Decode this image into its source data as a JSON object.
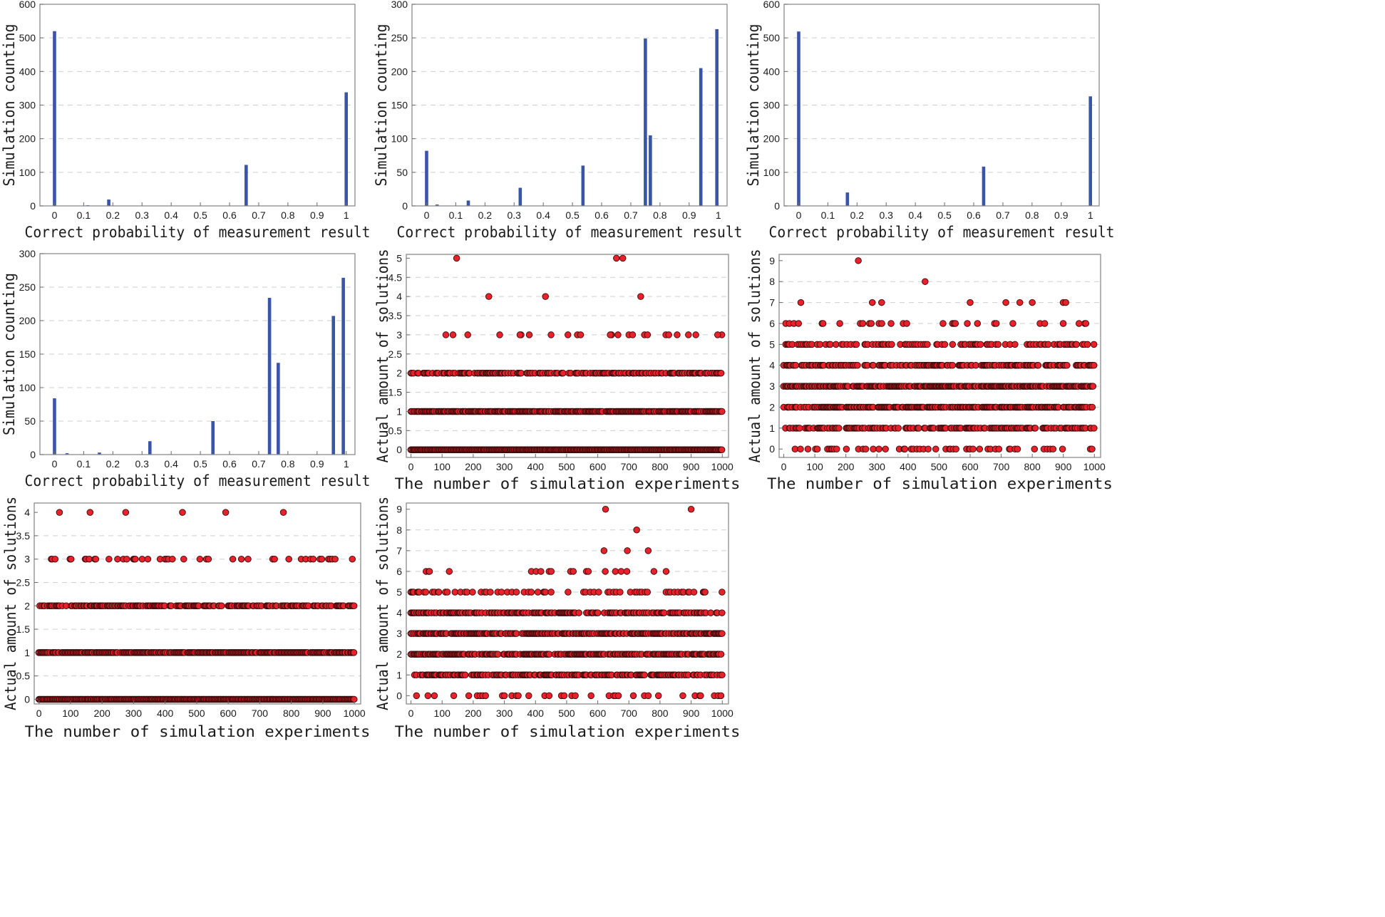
{
  "chart_data": [
    {
      "id": "hist1",
      "type": "bar",
      "xlabel": "Correct probability of measurement result",
      "ylabel": "Simulation counting",
      "xlim": [
        -0.05,
        1.03
      ],
      "ylim": [
        0,
        600
      ],
      "xticks": [
        0,
        0.1,
        0.2,
        0.3,
        0.4,
        0.5,
        0.6,
        0.7,
        0.8,
        0.9,
        1
      ],
      "xtick_labels": [
        "0",
        "0.1",
        "0.2",
        "0.3",
        "0.4",
        "0.5",
        "0.6",
        "0.7",
        "0.8",
        "0.9",
        "1"
      ],
      "yticks": [
        0,
        100,
        200,
        300,
        400,
        500,
        600
      ],
      "ytick_labels": [
        "0",
        "100",
        "200",
        "300",
        "400",
        "500",
        "600"
      ],
      "bar_x": [
        0,
        0.114,
        0.186,
        0.657,
        1.0
      ],
      "bar_values": [
        520,
        2,
        19,
        122,
        338
      ]
    },
    {
      "id": "hist2",
      "type": "bar",
      "xlabel": "Correct probability of measurement result",
      "ylabel": "Simulation counting",
      "xlim": [
        -0.05,
        1.03
      ],
      "ylim": [
        0,
        300
      ],
      "xticks": [
        0,
        0.1,
        0.2,
        0.3,
        0.4,
        0.5,
        0.6,
        0.7,
        0.8,
        0.9,
        1
      ],
      "xtick_labels": [
        "0",
        "0.1",
        "0.2",
        "0.3",
        "0.4",
        "0.5",
        "0.6",
        "0.7",
        "0.8",
        "0.9",
        "1"
      ],
      "yticks": [
        0,
        50,
        100,
        150,
        200,
        250,
        300
      ],
      "ytick_labels": [
        "0",
        "50",
        "100",
        "150",
        "200",
        "250",
        "300"
      ],
      "bar_x": [
        0.0,
        0.036,
        0.143,
        0.321,
        0.536,
        0.75,
        0.767,
        0.94,
        0.995
      ],
      "bar_values": [
        82,
        2,
        8,
        27,
        60,
        249,
        105,
        205,
        263
      ]
    },
    {
      "id": "hist3",
      "type": "bar",
      "xlabel": "Correct probability of measurement result",
      "ylabel": "Simulation counting",
      "xlim": [
        -0.05,
        1.03
      ],
      "ylim": [
        0,
        600
      ],
      "xticks": [
        0,
        0.1,
        0.2,
        0.3,
        0.4,
        0.5,
        0.6,
        0.7,
        0.8,
        0.9,
        1
      ],
      "xtick_labels": [
        "0",
        "0.1",
        "0.2",
        "0.3",
        "0.4",
        "0.5",
        "0.6",
        "0.7",
        "0.8",
        "0.9",
        "1"
      ],
      "yticks": [
        0,
        100,
        200,
        300,
        400,
        500,
        600
      ],
      "ytick_labels": [
        "0",
        "100",
        "200",
        "300",
        "400",
        "500",
        "600"
      ],
      "bar_x": [
        0,
        0.167,
        0.634,
        1.0
      ],
      "bar_values": [
        519,
        40,
        117,
        326
      ]
    },
    {
      "id": "hist4",
      "type": "bar",
      "xlabel": "Correct probability of measurement result",
      "ylabel": "Simulation counting",
      "xlim": [
        -0.05,
        1.03
      ],
      "ylim": [
        0,
        300
      ],
      "xticks": [
        0,
        0.1,
        0.2,
        0.3,
        0.4,
        0.5,
        0.6,
        0.7,
        0.8,
        0.9,
        1
      ],
      "xtick_labels": [
        "0",
        "0.1",
        "0.2",
        "0.3",
        "0.4",
        "0.5",
        "0.6",
        "0.7",
        "0.8",
        "0.9",
        "1"
      ],
      "yticks": [
        0,
        50,
        100,
        150,
        200,
        250,
        300
      ],
      "ytick_labels": [
        "0",
        "50",
        "100",
        "150",
        "200",
        "250",
        "300"
      ],
      "bar_x": [
        0.0,
        0.043,
        0.154,
        0.327,
        0.543,
        0.737,
        0.767,
        0.956,
        0.99
      ],
      "bar_values": [
        84,
        2,
        3,
        20,
        50,
        234,
        137,
        207,
        264
      ]
    },
    {
      "id": "scatter1",
      "type": "scatter",
      "xlabel": "The number of simulation experiments",
      "ylabel": "Actual amount of solutions",
      "xlim": [
        -15,
        1020
      ],
      "ylim": [
        -0.2,
        5.1
      ],
      "xticks": [
        0,
        100,
        200,
        300,
        400,
        500,
        600,
        700,
        800,
        900,
        1000
      ],
      "xtick_labels": [
        "0",
        "100",
        "200",
        "300",
        "400",
        "500",
        "600",
        "700",
        "800",
        "900",
        "1000"
      ],
      "yticks": [
        0,
        0.5,
        1,
        1.5,
        2,
        2.5,
        3,
        3.5,
        4,
        4.5,
        5
      ],
      "ytick_labels": [
        "0",
        "0.5",
        "1",
        "1.5",
        "2",
        "2.5",
        "3",
        "3.5",
        "4",
        "4.5",
        "5"
      ],
      "levels": [
        0,
        1,
        2,
        3,
        4,
        5
      ],
      "density": [
        1.0,
        0.85,
        0.55,
        0.025,
        0.004,
        0.001
      ],
      "seed": 11,
      "fixed_points": [
        {
          "x": 250,
          "y": 4
        },
        {
          "x": 432,
          "y": 4
        },
        {
          "x": 738,
          "y": 4
        },
        {
          "x": 660,
          "y": 5
        },
        {
          "x": 112,
          "y": 3
        },
        {
          "x": 135,
          "y": 3
        },
        {
          "x": 285,
          "y": 3
        },
        {
          "x": 350,
          "y": 3
        },
        {
          "x": 380,
          "y": 3
        },
        {
          "x": 450,
          "y": 3
        },
        {
          "x": 545,
          "y": 3
        },
        {
          "x": 640,
          "y": 3
        },
        {
          "x": 665,
          "y": 3
        },
        {
          "x": 700,
          "y": 3
        },
        {
          "x": 712,
          "y": 3
        },
        {
          "x": 750,
          "y": 3
        },
        {
          "x": 760,
          "y": 3
        },
        {
          "x": 855,
          "y": 3
        },
        {
          "x": 915,
          "y": 3
        },
        {
          "x": 985,
          "y": 3
        }
      ]
    },
    {
      "id": "scatter2",
      "type": "scatter",
      "xlabel": "The number of simulation experiments",
      "ylabel": "Actual amount of solutions",
      "xlim": [
        -15,
        1020
      ],
      "ylim": [
        -0.4,
        9.3
      ],
      "xticks": [
        0,
        100,
        200,
        300,
        400,
        500,
        600,
        700,
        800,
        900,
        1000
      ],
      "xtick_labels": [
        "0",
        "100",
        "200",
        "300",
        "400",
        "500",
        "600",
        "700",
        "800",
        "900",
        "1000"
      ],
      "yticks": [
        0,
        1,
        2,
        3,
        4,
        5,
        6,
        7,
        8,
        9
      ],
      "ytick_labels": [
        "0",
        "1",
        "2",
        "3",
        "4",
        "5",
        "6",
        "7",
        "8",
        "9"
      ],
      "levels": [
        0,
        1,
        2,
        3,
        4,
        5,
        6,
        7
      ],
      "density": [
        0.12,
        0.5,
        0.7,
        0.72,
        0.5,
        0.28,
        0.07,
        0.01
      ],
      "seed": 23,
      "fixed_points": [
        {
          "x": 240,
          "y": 9
        },
        {
          "x": 455,
          "y": 8
        },
        {
          "x": 55,
          "y": 7
        },
        {
          "x": 285,
          "y": 7
        },
        {
          "x": 315,
          "y": 7
        },
        {
          "x": 600,
          "y": 7
        },
        {
          "x": 715,
          "y": 7
        },
        {
          "x": 760,
          "y": 7
        },
        {
          "x": 800,
          "y": 7
        },
        {
          "x": 908,
          "y": 7
        }
      ]
    },
    {
      "id": "scatter3",
      "type": "scatter",
      "xlabel": "The number of simulation experiments",
      "ylabel": "Actual amount of solutions",
      "xlim": [
        -15,
        1020
      ],
      "ylim": [
        -0.1,
        4.2
      ],
      "xticks": [
        0,
        100,
        200,
        300,
        400,
        500,
        600,
        700,
        800,
        900,
        1000
      ],
      "xtick_labels": [
        "0",
        "100",
        "200",
        "300",
        "400",
        "500",
        "600",
        "700",
        "800",
        "900",
        "1000"
      ],
      "yticks": [
        0,
        0.5,
        1,
        1.5,
        2,
        2.5,
        3,
        3.5,
        4
      ],
      "ytick_labels": [
        "0",
        "0.5",
        "1",
        "1.5",
        "2",
        "2.5",
        "3",
        "3.5",
        "4"
      ],
      "levels": [
        0,
        1,
        2,
        3
      ],
      "density": [
        1.0,
        0.9,
        0.55,
        0.13
      ],
      "seed": 37,
      "fixed_points": [
        {
          "x": 65,
          "y": 4
        },
        {
          "x": 162,
          "y": 4
        },
        {
          "x": 275,
          "y": 4
        },
        {
          "x": 455,
          "y": 4
        },
        {
          "x": 592,
          "y": 4
        },
        {
          "x": 775,
          "y": 4
        }
      ]
    },
    {
      "id": "scatter4",
      "type": "scatter",
      "xlabel": "The number of simulation experiments",
      "ylabel": "Actual amount of solutions",
      "xlim": [
        -15,
        1020
      ],
      "ylim": [
        -0.4,
        9.3
      ],
      "xticks": [
        0,
        100,
        200,
        300,
        400,
        500,
        600,
        700,
        800,
        900,
        1000
      ],
      "xtick_labels": [
        "0",
        "100",
        "200",
        "300",
        "400",
        "500",
        "600",
        "700",
        "800",
        "900",
        "1000"
      ],
      "yticks": [
        0,
        1,
        2,
        3,
        4,
        5,
        6,
        7,
        8,
        9
      ],
      "ytick_labels": [
        "0",
        "1",
        "2",
        "3",
        "4",
        "5",
        "6",
        "7",
        "8",
        "9"
      ],
      "levels": [
        0,
        1,
        2,
        3,
        4,
        5,
        6
      ],
      "density": [
        0.12,
        0.55,
        0.7,
        0.72,
        0.55,
        0.22,
        0.05
      ],
      "seed": 41,
      "fixed_points": [
        {
          "x": 625,
          "y": 9
        },
        {
          "x": 900,
          "y": 9
        },
        {
          "x": 725,
          "y": 8
        },
        {
          "x": 620,
          "y": 7
        },
        {
          "x": 695,
          "y": 7
        },
        {
          "x": 762,
          "y": 7
        }
      ]
    }
  ]
}
